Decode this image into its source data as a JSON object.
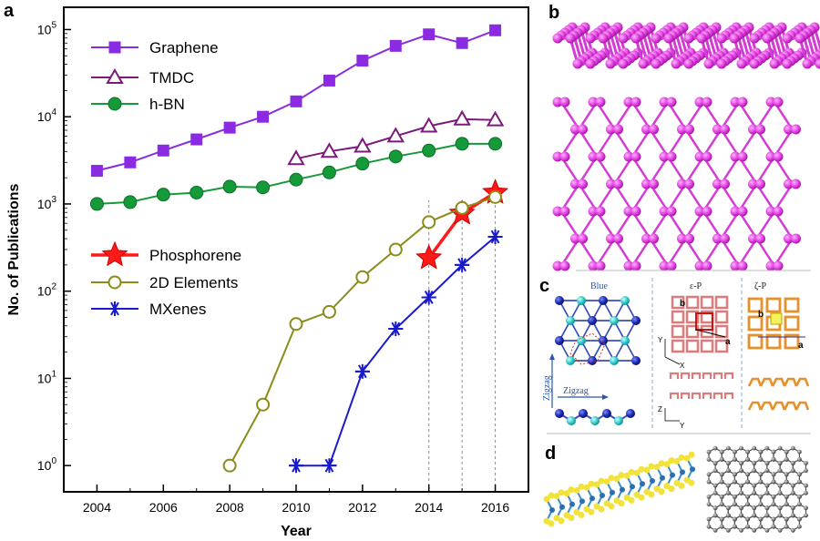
{
  "figure": {
    "panel_labels": [
      "a",
      "b",
      "c",
      "d"
    ],
    "panel_c_labels": {
      "blue": "Blue",
      "epsilon": "ε-P",
      "zeta": "ζ-P",
      "zigzag_vertical": "Zigzag",
      "zigzag_horizontal": "Zigzag",
      "a": "a",
      "b": "b",
      "axis_x": "X",
      "axis_y": "Y",
      "axis_z": "Z"
    }
  },
  "chart_data": {
    "type": "line",
    "title": "",
    "xlabel": "Year",
    "ylabel": "No. of Publications",
    "yscale": "log",
    "xlim": [
      2003,
      2017
    ],
    "ylim": [
      0.5,
      180000
    ],
    "x_ticks": [
      2004,
      2006,
      2008,
      2010,
      2012,
      2014,
      2016
    ],
    "y_ticks": [
      1,
      10,
      100,
      1000,
      10000,
      100000
    ],
    "y_tick_labels": [
      {
        "base": "10",
        "exp": "0"
      },
      {
        "base": "10",
        "exp": "1"
      },
      {
        "base": "10",
        "exp": "2"
      },
      {
        "base": "10",
        "exp": "3"
      },
      {
        "base": "10",
        "exp": "4"
      },
      {
        "base": "10",
        "exp": "5"
      }
    ],
    "series": [
      {
        "name": "Graphene",
        "color": "#8a2be2",
        "marker": "square",
        "x": [
          2004,
          2005,
          2006,
          2007,
          2008,
          2009,
          2010,
          2011,
          2012,
          2013,
          2014,
          2015,
          2016
        ],
        "values": [
          2400,
          3000,
          4100,
          5500,
          7500,
          10000,
          15000,
          26000,
          44000,
          65000,
          88000,
          70000,
          98000
        ]
      },
      {
        "name": "TMDC",
        "color": "#7b1a7b",
        "marker": "triangle-open",
        "x": [
          2010,
          2011,
          2012,
          2013,
          2014,
          2015,
          2016
        ],
        "values": [
          3300,
          4000,
          4600,
          6000,
          7800,
          9400,
          9200
        ]
      },
      {
        "name": "h-BN",
        "color": "#159a3a",
        "marker": "circle",
        "x": [
          2004,
          2005,
          2006,
          2007,
          2008,
          2009,
          2010,
          2011,
          2012,
          2013,
          2014,
          2015,
          2016
        ],
        "values": [
          1000,
          1050,
          1280,
          1350,
          1580,
          1550,
          1900,
          2300,
          2900,
          3500,
          4100,
          4900,
          4900
        ]
      },
      {
        "name": "Phosphorene",
        "color": "#ff1a1a",
        "marker": "star",
        "x": [
          2014,
          2015,
          2016
        ],
        "values": [
          240,
          780,
          1350
        ]
      },
      {
        "name": "2D Elements",
        "color": "#8b8b1a",
        "marker": "circle-open",
        "x": [
          2008,
          2009,
          2010,
          2011,
          2012,
          2013,
          2014,
          2015,
          2016
        ],
        "values": [
          1,
          5,
          42,
          58,
          145,
          300,
          620,
          900,
          1200
        ]
      },
      {
        "name": "MXenes",
        "color": "#1a1acd",
        "marker": "asterisk",
        "x": [
          2010,
          2011,
          2012,
          2013,
          2014,
          2015,
          2016
        ],
        "values": [
          1,
          1,
          12,
          37,
          85,
          200,
          420
        ]
      }
    ],
    "reference_lines_x": [
      2014,
      2015,
      2016
    ],
    "legend": "top-left (two groups)"
  }
}
